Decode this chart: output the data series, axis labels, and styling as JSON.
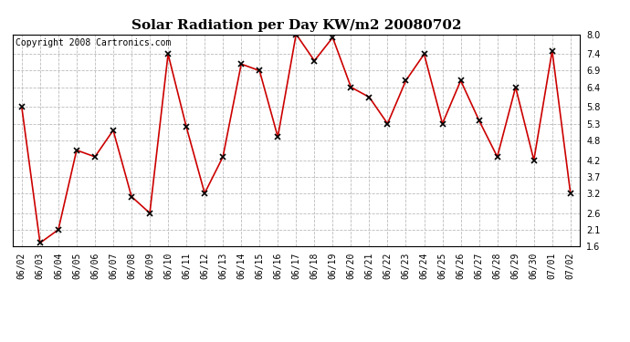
{
  "title": "Solar Radiation per Day KW/m2 20080702",
  "copyright_text": "Copyright 2008 Cartronics.com",
  "dates": [
    "06/02",
    "06/03",
    "06/04",
    "06/05",
    "06/06",
    "06/07",
    "06/08",
    "06/09",
    "06/10",
    "06/11",
    "06/12",
    "06/13",
    "06/14",
    "06/15",
    "06/16",
    "06/17",
    "06/18",
    "06/19",
    "06/20",
    "06/21",
    "06/22",
    "06/23",
    "06/24",
    "06/25",
    "06/26",
    "06/27",
    "06/28",
    "06/29",
    "06/30",
    "07/01",
    "07/02"
  ],
  "values": [
    5.8,
    1.7,
    2.1,
    4.5,
    4.3,
    5.1,
    3.1,
    2.6,
    7.4,
    5.2,
    3.2,
    4.3,
    7.1,
    6.9,
    4.9,
    8.0,
    7.2,
    7.9,
    6.4,
    6.1,
    5.3,
    6.6,
    7.4,
    5.3,
    6.6,
    5.4,
    4.3,
    6.4,
    4.2,
    7.5,
    3.2
  ],
  "line_color": "#cc0000",
  "marker": "x",
  "marker_size": 5,
  "marker_color": "#000000",
  "ylim": [
    1.6,
    8.0
  ],
  "yticks": [
    1.6,
    2.1,
    2.6,
    3.2,
    3.7,
    4.2,
    4.8,
    5.3,
    5.8,
    6.4,
    6.9,
    7.4,
    8.0
  ],
  "grid_color": "#bbbbbb",
  "grid_style": "--",
  "bg_color": "#ffffff",
  "title_fontsize": 11,
  "tick_fontsize": 7,
  "copyright_fontsize": 7,
  "label_rotation": 90
}
